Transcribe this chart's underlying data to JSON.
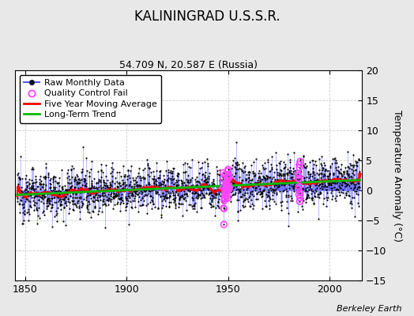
{
  "title": "KALININGRAD U.S.S.R.",
  "subtitle": "54.709 N, 20.587 E (Russia)",
  "ylabel": "Temperature Anomaly (°C)",
  "credit": "Berkeley Earth",
  "xlim": [
    1845,
    2016
  ],
  "ylim": [
    -15,
    20
  ],
  "yticks": [
    -15,
    -10,
    -5,
    0,
    5,
    10,
    15,
    20
  ],
  "xticks": [
    1850,
    1900,
    1950,
    2000
  ],
  "background_color": "#ffffff",
  "fig_bg_color": "#e8e8e8",
  "grid_color": "#cccccc",
  "seed": 12345,
  "start_year": 1846,
  "end_year": 2014,
  "noise_std": 2.2,
  "trend_slope": 0.006,
  "moving_avg_window": 60,
  "line_color": "#5555ff",
  "dot_color": "#000000",
  "moving_avg_color": "#ff0000",
  "trend_color": "#00bb00",
  "qc_color": "#ff44ff",
  "legend_fontsize": 8,
  "title_fontsize": 12,
  "subtitle_fontsize": 9,
  "tick_labelsize": 9
}
